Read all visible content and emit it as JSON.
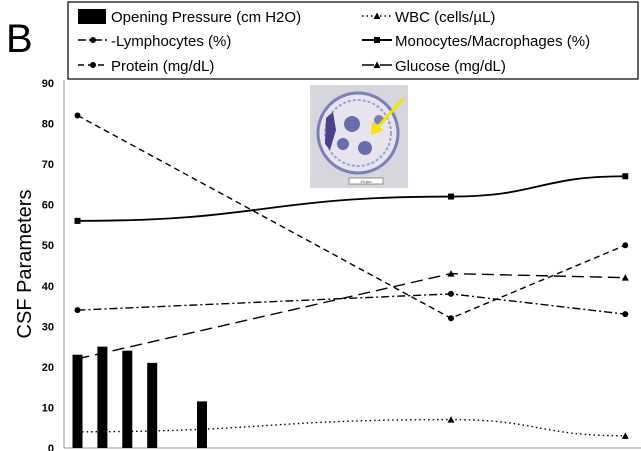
{
  "panel_label": "B",
  "chart_data": {
    "type": "line",
    "ylabel": "CSF Parameters",
    "ylim": [
      0,
      90
    ],
    "yticks": [
      0,
      10,
      20,
      30,
      40,
      50,
      60,
      70,
      80,
      90
    ],
    "grid": false,
    "legend_position": "top",
    "bars": {
      "name": "Opening Pressure (cm H2O)",
      "x": [
        1,
        2,
        3,
        4,
        6
      ],
      "values": [
        23,
        25,
        24,
        21,
        11.5
      ],
      "color": "#000000"
    },
    "series": [
      {
        "name": "WBC (cells/µL)",
        "style": "dotted",
        "marker": "triangle",
        "x": [
          1,
          16,
          23
        ],
        "values": [
          4,
          7,
          3
        ]
      },
      {
        "name": "-Lymphocytes (%)",
        "style": "dashdot",
        "marker": "circle",
        "x": [
          1,
          16,
          23
        ],
        "values": [
          34,
          38,
          33
        ]
      },
      {
        "name": "Monocytes/Macrophages (%)",
        "style": "solid",
        "marker": "square",
        "x": [
          1,
          16,
          23
        ],
        "values": [
          56,
          62,
          67
        ]
      },
      {
        "name": "Protein (mg/dL)",
        "style": "dashed",
        "marker": "circle",
        "x": [
          1,
          16,
          23
        ],
        "values": [
          82,
          32,
          50
        ]
      },
      {
        "name": "Glucose (mg/dL)",
        "style": "longdash",
        "marker": "triangle",
        "x": [
          1,
          16,
          23
        ],
        "values": [
          22,
          43,
          42
        ]
      }
    ]
  },
  "inset": {
    "scale_label": "20 µm",
    "arrow_color": "#f2e600"
  }
}
